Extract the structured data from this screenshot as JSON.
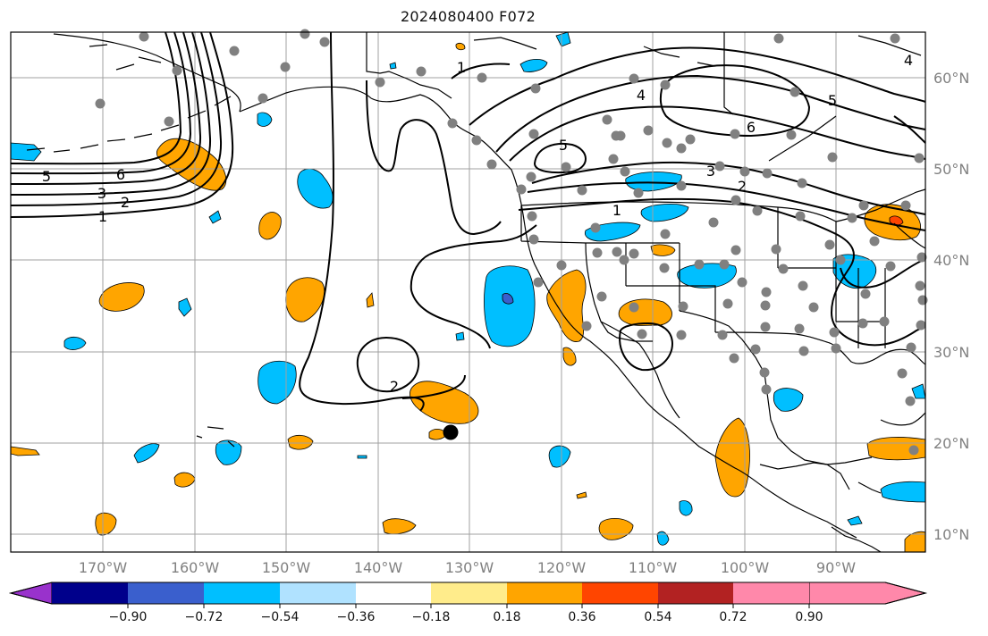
{
  "title": "2024080400 F072",
  "lat_labels": [
    "60°N",
    "50°N",
    "40°N",
    "30°N",
    "20°N",
    "10°N"
  ],
  "lon_labels": [
    "170°W",
    "160°W",
    "150°W",
    "140°W",
    "130°W",
    "120°W",
    "110°W",
    "100°W",
    "90°W"
  ],
  "colorbar": {
    "tick_labels": [
      "−0.90",
      "−0.72",
      "−0.54",
      "−0.36",
      "−0.18",
      "0.18",
      "0.36",
      "0.54",
      "0.72",
      "0.90"
    ],
    "colors": [
      "#9932cc",
      "#00008b",
      "#3a5fcd",
      "#00bfff",
      "#b0e2ff",
      "#ffffff",
      "#ffec8b",
      "#ffa500",
      "#ff4500",
      "#b22222",
      "#ff88aa"
    ]
  },
  "contour_labels": [
    "1",
    "2",
    "3",
    "5",
    "6",
    "1",
    "2",
    "3",
    "4",
    "5",
    "6",
    "5",
    "2",
    "4",
    "1"
  ],
  "colors": {
    "positive_fill": "#ffa500",
    "negative_fill": "#00bfff",
    "contour": "#000000",
    "grid": "#a0a0a0",
    "station_dot": "#808080"
  }
}
